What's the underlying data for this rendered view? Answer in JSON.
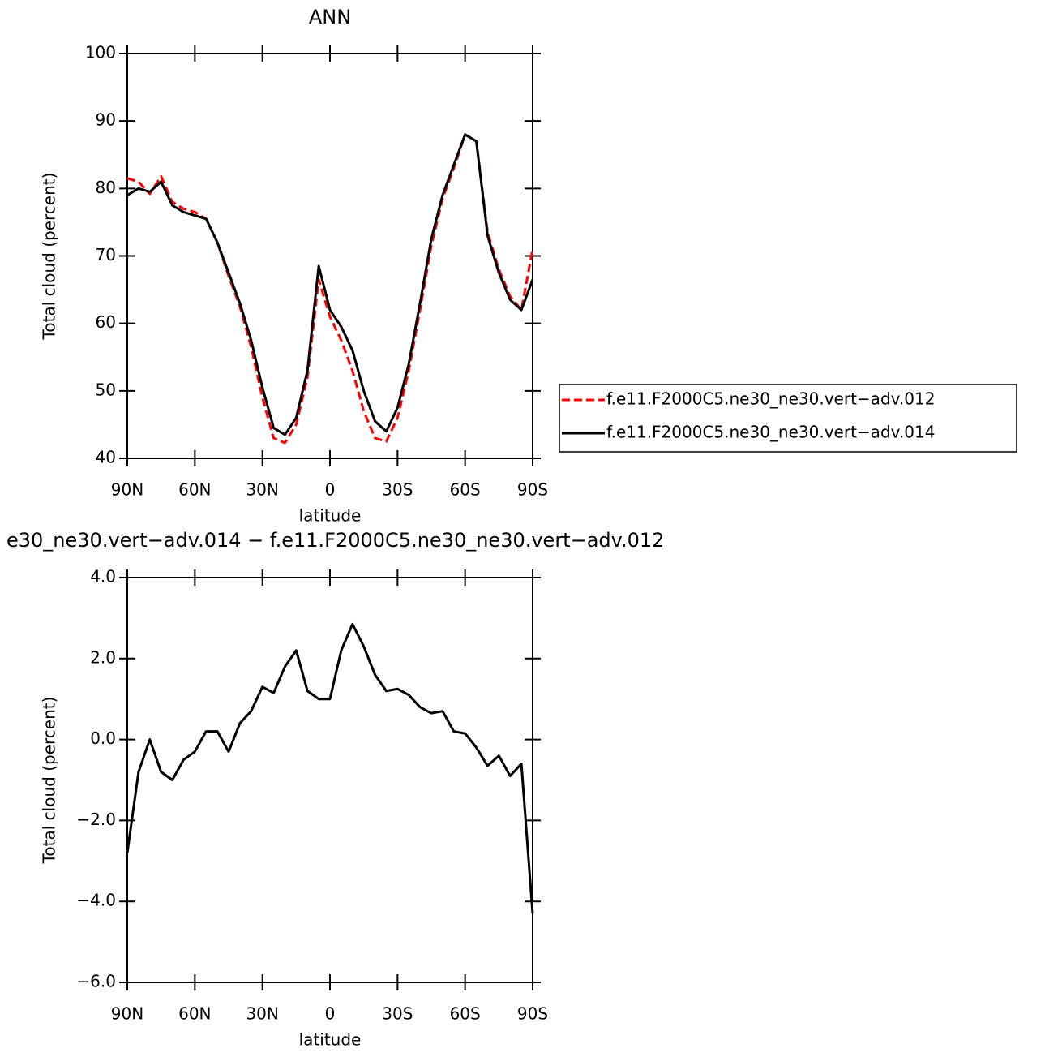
{
  "chart_data": [
    {
      "type": "line",
      "title": "ANN",
      "xlabel": "latitude",
      "ylabel": "Total cloud (percent)",
      "x": [
        90,
        85,
        80,
        75,
        70,
        65,
        60,
        55,
        50,
        45,
        40,
        35,
        30,
        25,
        20,
        15,
        10,
        5,
        0,
        -5,
        -10,
        -15,
        -20,
        -25,
        -30,
        -35,
        -40,
        -45,
        -50,
        -55,
        -60,
        -65,
        -70,
        -75,
        -80,
        -85,
        -90
      ],
      "xlim": [
        90,
        -90
      ],
      "xticks": [
        {
          "value": 90,
          "label": "90N"
        },
        {
          "value": 60,
          "label": "60N"
        },
        {
          "value": 30,
          "label": "30N"
        },
        0,
        {
          "value": -30,
          "label": "30S"
        },
        {
          "value": -60,
          "label": "60S"
        },
        {
          "value": -90,
          "label": "90S"
        }
      ],
      "ylim": [
        40,
        100
      ],
      "yticks": [
        40,
        50,
        60,
        70,
        80,
        90,
        100
      ],
      "legend": "right",
      "series": [
        {
          "name": "f.e11.F2000C5.ne30_ne30.vert−adv.012",
          "color": "#ff0000",
          "dash": true,
          "values": [
            81.5,
            81,
            79.2,
            81.8,
            78,
            77,
            76.5,
            75.5,
            72,
            67,
            62.5,
            56.5,
            49,
            43,
            42.3,
            45,
            52,
            66.5,
            61,
            57.5,
            53,
            47,
            43,
            42.5,
            46,
            53,
            62,
            71.5,
            78.5,
            83,
            88,
            87,
            73.5,
            68,
            64,
            62,
            71
          ]
        },
        {
          "name": "f.e11.F2000C5.ne30_ne30.vert−adv.014",
          "color": "#000000",
          "dash": false,
          "values": [
            79,
            80,
            79.5,
            81,
            77.5,
            76.5,
            76,
            75.5,
            72,
            67.5,
            63,
            57.5,
            50.5,
            44.5,
            43.5,
            46,
            53,
            68.5,
            62,
            59.5,
            56,
            50,
            45.5,
            44,
            47.5,
            54,
            63,
            72.5,
            79,
            83.5,
            88,
            87,
            73,
            67.5,
            63.5,
            62,
            66.5
          ]
        }
      ]
    },
    {
      "type": "line",
      "title": "e30_ne30.vert−adv.014 − f.e11.F2000C5.ne30_ne30.vert−adv.012",
      "xlabel": "latitude",
      "ylabel": "Total cloud (percent)",
      "x": [
        90,
        85,
        80,
        75,
        70,
        65,
        60,
        55,
        50,
        45,
        40,
        35,
        30,
        25,
        20,
        15,
        10,
        5,
        0,
        -5,
        -10,
        -15,
        -20,
        -25,
        -30,
        -35,
        -40,
        -45,
        -50,
        -55,
        -60,
        -65,
        -70,
        -75,
        -80,
        -85,
        -90
      ],
      "xlim": [
        90,
        -90
      ],
      "xticks": [
        {
          "value": 90,
          "label": "90N"
        },
        {
          "value": 60,
          "label": "60N"
        },
        {
          "value": 30,
          "label": "30N"
        },
        0,
        {
          "value": -30,
          "label": "30S"
        },
        {
          "value": -60,
          "label": "60S"
        },
        {
          "value": -90,
          "label": "90S"
        }
      ],
      "ylim": [
        -6,
        4
      ],
      "yticks": [
        {
          "value": -6,
          "label": "−6.0"
        },
        {
          "value": -4,
          "label": "−4.0"
        },
        {
          "value": -2,
          "label": "−2.0"
        },
        {
          "value": 0,
          "label": "0.0"
        },
        {
          "value": 2,
          "label": "2.0"
        },
        {
          "value": 4,
          "label": "4.0"
        }
      ],
      "color": "#000000",
      "values": [
        -2.8,
        -0.8,
        0.0,
        -0.8,
        -1.0,
        -0.5,
        -0.3,
        0.2,
        0.2,
        -0.3,
        0.4,
        0.7,
        1.3,
        1.15,
        1.8,
        2.2,
        1.2,
        1.0,
        1.0,
        2.2,
        2.85,
        2.3,
        1.6,
        1.2,
        1.25,
        1.1,
        0.8,
        0.65,
        0.7,
        0.2,
        0.15,
        -0.2,
        -0.65,
        -0.4,
        -0.9,
        -0.6,
        -4.3
      ]
    }
  ]
}
